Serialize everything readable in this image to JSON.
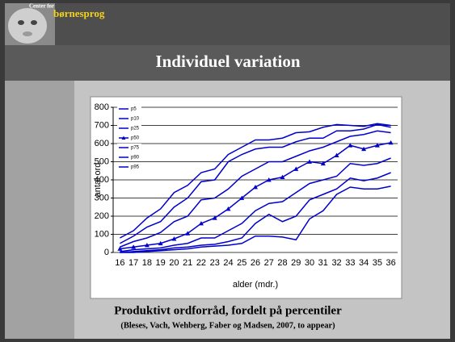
{
  "header": {
    "logo_line1": "Center for",
    "logo_line2": "børnesprog"
  },
  "slide": {
    "title": "Individuel variation",
    "caption": "Produktivt ordforråd, fordelt på percentiler",
    "citation": "(Bleses, Vach, Wehberg, Faber og Madsen, 2007, to appear)"
  },
  "chart_data": {
    "type": "line",
    "x_label": "alder (mdr.)",
    "y_label": "antal ord",
    "categories": [
      16,
      17,
      18,
      19,
      20,
      21,
      22,
      23,
      24,
      25,
      26,
      27,
      28,
      29,
      30,
      31,
      32,
      33,
      34,
      35,
      36
    ],
    "ylim": [
      0,
      800
    ],
    "yticks": [
      0,
      100,
      200,
      300,
      400,
      500,
      600,
      700,
      800
    ],
    "grid": true,
    "legend": "top-left",
    "series": [
      {
        "name": "p5",
        "color": "#0000cc",
        "values": [
          0,
          0,
          5,
          10,
          15,
          20,
          30,
          35,
          40,
          50,
          90,
          90,
          85,
          70,
          185,
          230,
          320,
          360,
          350,
          350,
          365
        ]
      },
      {
        "name": "p10",
        "color": "#0000cc",
        "values": [
          0,
          5,
          10,
          15,
          25,
          30,
          40,
          45,
          60,
          80,
          160,
          210,
          170,
          200,
          290,
          320,
          350,
          410,
          395,
          410,
          440
        ]
      },
      {
        "name": "p25",
        "color": "#0000cc",
        "values": [
          5,
          15,
          20,
          25,
          40,
          50,
          80,
          80,
          120,
          160,
          230,
          270,
          280,
          330,
          380,
          400,
          420,
          490,
          480,
          490,
          520
        ]
      },
      {
        "name": "p50",
        "color": "#0000cc",
        "marker": "triangle",
        "values": [
          20,
          30,
          40,
          50,
          75,
          105,
          160,
          190,
          240,
          300,
          360,
          400,
          415,
          460,
          500,
          490,
          535,
          590,
          570,
          590,
          605
        ]
      },
      {
        "name": "p75",
        "color": "#0000cc",
        "values": [
          30,
          60,
          80,
          110,
          170,
          200,
          290,
          300,
          350,
          420,
          460,
          500,
          500,
          530,
          560,
          580,
          610,
          640,
          650,
          670,
          660
        ]
      },
      {
        "name": "p90",
        "color": "#0000cc",
        "values": [
          50,
          90,
          140,
          170,
          250,
          300,
          390,
          400,
          500,
          540,
          570,
          580,
          580,
          610,
          630,
          630,
          670,
          670,
          680,
          705,
          690
        ]
      },
      {
        "name": "p95",
        "color": "#0000cc",
        "values": [
          80,
          120,
          190,
          240,
          330,
          370,
          440,
          460,
          540,
          580,
          620,
          620,
          630,
          660,
          665,
          690,
          705,
          700,
          695,
          710,
          700
        ]
      }
    ]
  }
}
